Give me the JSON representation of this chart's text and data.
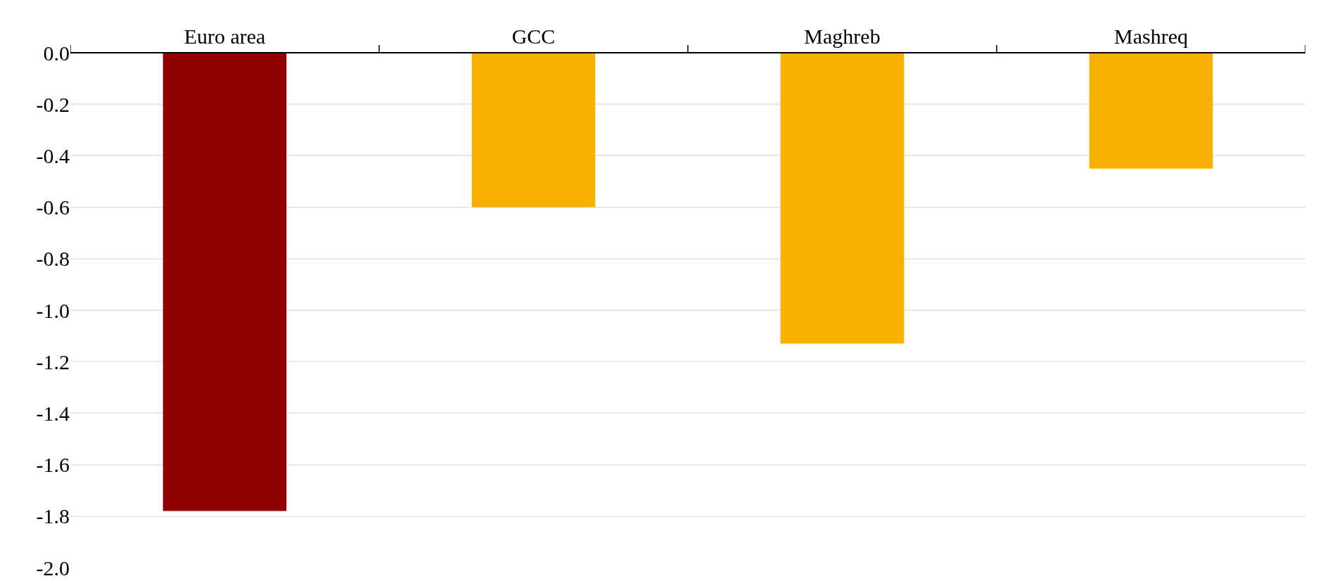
{
  "chart_data": {
    "type": "bar",
    "categories": [
      "Euro area",
      "GCC",
      "Maghreb",
      "Mashreq"
    ],
    "values": [
      -1.78,
      -0.6,
      -1.13,
      -0.45
    ],
    "colors": [
      "#8f0000",
      "#f7b000",
      "#f7b000",
      "#f7b000"
    ],
    "ylim": [
      -2.0,
      0.0
    ],
    "yticks": [
      {
        "value": -2.0,
        "label": "-2.0"
      },
      {
        "value": -1.8,
        "label": "-1.8"
      },
      {
        "value": -1.6,
        "label": "-1.6"
      },
      {
        "value": -1.4,
        "label": "-1.4"
      },
      {
        "value": -1.2,
        "label": "-1.2"
      },
      {
        "value": -1.0,
        "label": "-1.0"
      },
      {
        "value": -0.8,
        "label": "-0.8"
      },
      {
        "value": -0.6,
        "label": "-0.6"
      },
      {
        "value": -0.4,
        "label": "-0.4"
      },
      {
        "value": -0.2,
        "label": "-0.2"
      },
      {
        "value": 0.0,
        "label": "0.0"
      }
    ],
    "grid": "y"
  }
}
